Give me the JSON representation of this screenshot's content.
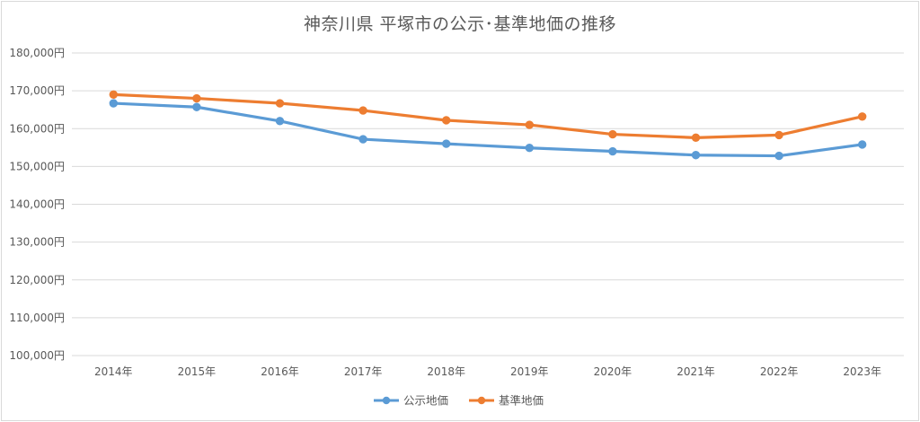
{
  "chart_data": {
    "type": "line",
    "title": "神奈川県 平塚市の公示･基準地価の推移",
    "categories": [
      "2014年",
      "2015年",
      "2016年",
      "2017年",
      "2018年",
      "2019年",
      "2020年",
      "2021年",
      "2022年",
      "2023年"
    ],
    "ylim": [
      100000,
      180000
    ],
    "yticks": [
      100000,
      110000,
      120000,
      130000,
      140000,
      150000,
      160000,
      170000,
      180000
    ],
    "ytick_labels": [
      "100,000円",
      "110,000円",
      "120,000円",
      "130,000円",
      "140,000円",
      "150,000円",
      "160,000円",
      "170,000円",
      "180,000円"
    ],
    "grid": true,
    "legend_position": "bottom",
    "series": [
      {
        "name": "公示地価",
        "color": "#5b9bd5",
        "values": [
          166700,
          165700,
          162000,
          157200,
          156000,
          154900,
          154000,
          153000,
          152800,
          155800
        ]
      },
      {
        "name": "基準地価",
        "color": "#ed7d31",
        "values": [
          169000,
          168000,
          166700,
          164800,
          162200,
          161000,
          158500,
          157600,
          158300,
          163200
        ]
      }
    ]
  }
}
